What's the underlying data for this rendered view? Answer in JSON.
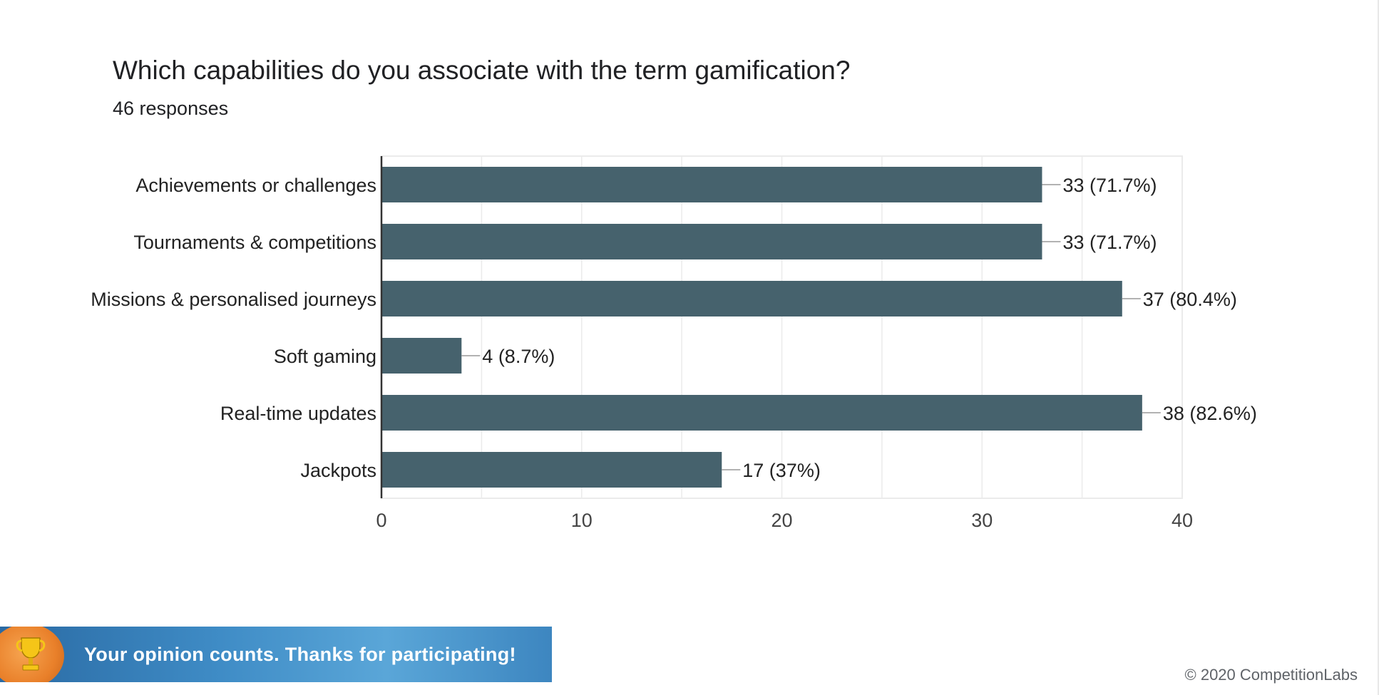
{
  "header": {
    "title": "Which capabilities do you associate with the term gamification?",
    "responses": "46 responses"
  },
  "chart_data": {
    "type": "bar",
    "orientation": "horizontal",
    "categories": [
      "Achievements or challenges",
      "Tournaments & competitions",
      "Missions & personalised journeys",
      "Soft gaming",
      "Real-time updates",
      "Jackpots"
    ],
    "values": [
      33,
      33,
      37,
      4,
      38,
      17
    ],
    "data_labels": [
      "33 (71.7%)",
      "33 (71.7%)",
      "37 (80.4%)",
      "4 (8.7%)",
      "38 (82.6%)",
      "17 (37%)"
    ],
    "xlim": [
      0,
      40
    ],
    "x_ticks": [
      0,
      10,
      20,
      30,
      40
    ],
    "minor_grid_step": 5,
    "grid": true,
    "bar_color": "#46626d"
  },
  "banner": {
    "text": "Your opinion counts. Thanks for participating!",
    "icon": "trophy-icon"
  },
  "footer": {
    "copyright": "© 2020 CompetitionLabs"
  },
  "colors": {
    "bar": "#46626d",
    "grid": "#ebebeb",
    "axis": "#333333",
    "text": "#202124"
  }
}
